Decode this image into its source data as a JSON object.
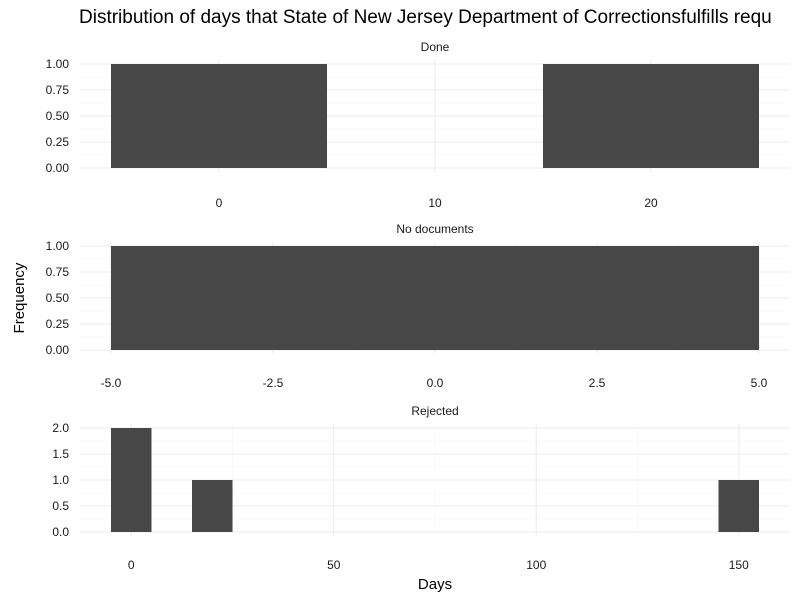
{
  "chart_data": {
    "type": "bar",
    "title": "Distribution of days that State of New Jersey Department of Correctionsfulfills requ",
    "xlabel": "Days",
    "ylabel": "Frequency",
    "bar_color": "#474747",
    "grid": true,
    "panels": [
      {
        "name": "Done",
        "xlim": [
          -5,
          25
        ],
        "ylim": [
          0,
          1
        ],
        "xticks": [
          0,
          10,
          20
        ],
        "xtick_labels": [
          "0",
          "10",
          "20"
        ],
        "yticks": [
          0,
          0.25,
          0.5,
          0.75,
          1
        ],
        "ytick_labels": [
          "0.00",
          "0.25",
          "0.50",
          "0.75",
          "1.00"
        ],
        "bars": [
          {
            "x0": -5,
            "x1": 5,
            "value": 1
          },
          {
            "x0": 15,
            "x1": 25,
            "value": 1
          }
        ]
      },
      {
        "name": "No documents",
        "xlim": [
          -5,
          5
        ],
        "ylim": [
          0,
          1
        ],
        "xticks": [
          -5,
          -2.5,
          0,
          2.5,
          5
        ],
        "xtick_labels": [
          "-5.0",
          "-2.5",
          "0.0",
          "2.5",
          "5.0"
        ],
        "yticks": [
          0,
          0.25,
          0.5,
          0.75,
          1
        ],
        "ytick_labels": [
          "0.00",
          "0.25",
          "0.50",
          "0.75",
          "1.00"
        ],
        "bars": [
          {
            "x0": -5,
            "x1": 5,
            "value": 1
          }
        ]
      },
      {
        "name": "Rejected",
        "xlim": [
          -5,
          155
        ],
        "ylim": [
          0,
          2
        ],
        "xticks": [
          0,
          50,
          100,
          150
        ],
        "xtick_labels": [
          "0",
          "50",
          "100",
          "150"
        ],
        "yticks": [
          0,
          0.5,
          1,
          1.5,
          2
        ],
        "ytick_labels": [
          "0.0",
          "0.5",
          "1.0",
          "1.5",
          "2.0"
        ],
        "bars": [
          {
            "x0": -5,
            "x1": 5,
            "value": 2
          },
          {
            "x0": 15,
            "x1": 25,
            "value": 1
          },
          {
            "x0": 145,
            "x1": 155,
            "value": 1
          }
        ]
      }
    ]
  }
}
